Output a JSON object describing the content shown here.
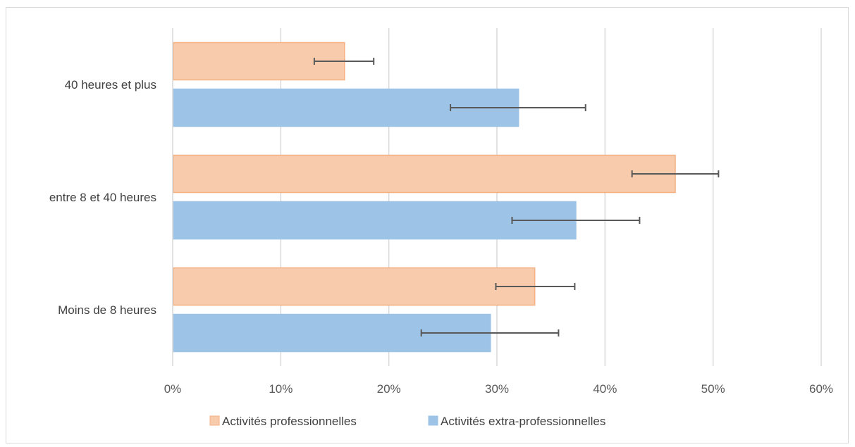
{
  "chart_data": {
    "type": "bar",
    "orientation": "horizontal",
    "title": "",
    "xlabel": "",
    "ylabel": "",
    "categories": [
      "Moins de 8 heures",
      "entre 8 et 40 heures",
      "40 heures et plus"
    ],
    "xlim": [
      0,
      0.6
    ],
    "x_ticks": [
      "0%",
      "10%",
      "20%",
      "30%",
      "40%",
      "50%",
      "60%"
    ],
    "grid": "vertical",
    "legend_position": "bottom",
    "series": [
      {
        "name": "Activités professionnelles",
        "color": "#f8cbad",
        "border": "#f4b183",
        "values": [
          0.335,
          0.465,
          0.159
        ],
        "error_low": [
          0.299,
          0.425,
          0.131
        ],
        "error_high": [
          0.372,
          0.505,
          0.186
        ]
      },
      {
        "name": "Activités extra-professionnelles",
        "color": "#9dc3e6",
        "border": "#9dc3e6",
        "values": [
          0.294,
          0.373,
          0.32
        ],
        "error_low": [
          0.23,
          0.314,
          0.257
        ],
        "error_high": [
          0.357,
          0.432,
          0.382
        ]
      }
    ]
  }
}
